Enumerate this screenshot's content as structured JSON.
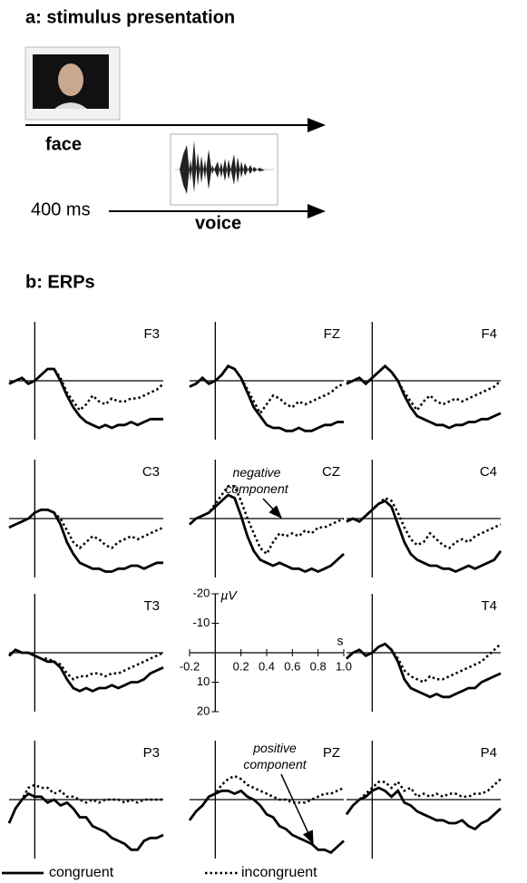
{
  "section_a": {
    "title": "a: stimulus presentation",
    "face_label": "face",
    "delay_label": "400 ms",
    "voice_label": "voice"
  },
  "chart_data": {
    "type": "line",
    "title": "b: ERPs",
    "x": [
      -0.2,
      -0.15,
      -0.1,
      -0.05,
      0,
      0.05,
      0.1,
      0.15,
      0.2,
      0.25,
      0.3,
      0.35,
      0.4,
      0.45,
      0.5,
      0.55,
      0.6,
      0.65,
      0.7,
      0.75,
      0.8,
      0.85,
      0.9,
      0.95,
      1.0
    ],
    "xlim": [
      -0.2,
      1.0
    ],
    "ylim": [
      -20,
      20
    ],
    "invert_y": true,
    "xticks": [
      -0.2,
      0.2,
      0.4,
      0.6,
      0.8,
      {
        "value": 1.0,
        "label": "1.0"
      }
    ],
    "yticks": [
      -20,
      -10,
      10,
      20
    ],
    "xlabel": "s",
    "ylabel": "µV",
    "grid": false,
    "series": [
      {
        "name": "congruent",
        "color": "#000000",
        "style": "solid"
      },
      {
        "name": "incongruent",
        "color": "#000000",
        "style": "dotted"
      }
    ],
    "panels": [
      {
        "name": "F3",
        "values": [
          [
            1,
            0,
            -1,
            1,
            0,
            -2,
            -4,
            -4,
            0,
            5,
            9,
            12,
            14,
            15,
            16,
            15,
            16,
            15,
            15,
            14,
            15,
            14,
            13,
            13,
            13
          ],
          [
            1,
            0,
            -1,
            1,
            0,
            -2,
            -4,
            -4,
            -1,
            4,
            7,
            10,
            8,
            5,
            7,
            8,
            6,
            7,
            7,
            6,
            6,
            5,
            4,
            3,
            1
          ]
        ]
      },
      {
        "name": "FZ",
        "values": [
          [
            2,
            1,
            -1,
            1,
            0,
            -2,
            -5,
            -4,
            -1,
            4,
            9,
            12,
            15,
            16,
            16,
            17,
            17,
            16,
            17,
            17,
            16,
            15,
            15,
            14,
            14
          ],
          [
            2,
            1,
            -1,
            1,
            0,
            -2,
            -5,
            -4,
            -1,
            3,
            7,
            11,
            8,
            5,
            6,
            8,
            9,
            7,
            8,
            7,
            6,
            5,
            4,
            2,
            1
          ]
        ]
      },
      {
        "name": "F4",
        "values": [
          [
            1,
            0,
            -1,
            1,
            -1,
            -3,
            -5,
            -3,
            0,
            5,
            9,
            12,
            13,
            14,
            15,
            15,
            16,
            15,
            15,
            14,
            14,
            13,
            13,
            12,
            11
          ],
          [
            1,
            0,
            -1,
            1,
            -1,
            -3,
            -5,
            -3,
            0,
            4,
            7,
            10,
            7,
            5,
            7,
            8,
            7,
            6,
            7,
            6,
            5,
            4,
            3,
            2,
            0
          ]
        ]
      },
      {
        "name": "C3",
        "values": [
          [
            3,
            2,
            1,
            0,
            -2,
            -3,
            -3,
            -2,
            2,
            8,
            12,
            15,
            16,
            17,
            17,
            18,
            18,
            17,
            17,
            16,
            16,
            17,
            16,
            15,
            15
          ],
          [
            3,
            2,
            1,
            0,
            -2,
            -3,
            -3,
            -2,
            0,
            4,
            8,
            10,
            8,
            6,
            7,
            9,
            10,
            8,
            7,
            6,
            7,
            6,
            5,
            4,
            3
          ]
        ]
      },
      {
        "name": "CZ",
        "values": [
          [
            2,
            0,
            -1,
            -2,
            -4,
            -6,
            -8,
            -7,
            -1,
            6,
            11,
            14,
            15,
            16,
            15,
            16,
            17,
            17,
            18,
            17,
            18,
            17,
            16,
            14,
            12
          ],
          [
            2,
            0,
            -1,
            -2,
            -5,
            -8,
            -11,
            -11,
            -6,
            0,
            5,
            10,
            12,
            8,
            5,
            6,
            5,
            6,
            4,
            5,
            3,
            3,
            2,
            1,
            0
          ]
        ]
      },
      {
        "name": "C4",
        "values": [
          [
            1,
            0,
            1,
            -1,
            -3,
            -5,
            -6,
            -4,
            2,
            8,
            12,
            14,
            15,
            16,
            16,
            17,
            17,
            18,
            17,
            16,
            17,
            16,
            15,
            14,
            11
          ],
          [
            1,
            0,
            1,
            -1,
            -3,
            -5,
            -7,
            -6,
            -2,
            3,
            7,
            9,
            8,
            5,
            7,
            9,
            10,
            8,
            7,
            8,
            6,
            5,
            4,
            3,
            2
          ]
        ]
      },
      {
        "name": "T3",
        "values": [
          [
            1,
            -1,
            0,
            0,
            1,
            2,
            3,
            3,
            5,
            9,
            12,
            13,
            12,
            13,
            12,
            12,
            11,
            12,
            11,
            10,
            10,
            9,
            7,
            6,
            5
          ],
          [
            1,
            -1,
            0,
            0,
            1,
            2,
            2,
            3,
            4,
            7,
            9,
            8,
            8,
            7,
            7,
            8,
            7,
            7,
            6,
            5,
            4,
            3,
            2,
            1,
            0
          ]
        ]
      },
      {
        "name": "T4",
        "values": [
          [
            2,
            0,
            -1,
            1,
            0,
            -2,
            -3,
            -1,
            3,
            9,
            12,
            13,
            14,
            15,
            14,
            15,
            15,
            14,
            13,
            12,
            12,
            10,
            9,
            8,
            7
          ],
          [
            2,
            0,
            -1,
            1,
            0,
            -2,
            -3,
            -1,
            2,
            6,
            8,
            9,
            10,
            8,
            9,
            9,
            8,
            7,
            6,
            5,
            4,
            3,
            1,
            -1,
            -3
          ]
        ]
      },
      {
        "name": "P3",
        "values": [
          [
            8,
            3,
            0,
            -2,
            -1,
            -1,
            1,
            0,
            2,
            1,
            3,
            6,
            6,
            9,
            10,
            11,
            13,
            14,
            15,
            17,
            17,
            14,
            13,
            13,
            12
          ],
          [
            8,
            3,
            0,
            -4,
            -5,
            -4,
            -4,
            -2,
            -3,
            -1,
            -1,
            0,
            1,
            0,
            1,
            0,
            0,
            0,
            1,
            0,
            1,
            0,
            0,
            0,
            0
          ]
        ]
      },
      {
        "name": "PZ",
        "values": [
          [
            7,
            4,
            2,
            -1,
            -2,
            -3,
            -3,
            -2,
            -3,
            -1,
            0,
            2,
            5,
            6,
            9,
            10,
            12,
            13,
            14,
            15,
            17,
            17,
            18,
            16,
            14
          ],
          [
            7,
            4,
            2,
            -1,
            -2,
            -5,
            -7,
            -8,
            -7,
            -5,
            -4,
            -3,
            -2,
            -1,
            0,
            0,
            1,
            1,
            1,
            0,
            -1,
            -2,
            -2,
            -3,
            -4
          ]
        ]
      },
      {
        "name": "P4",
        "values": [
          [
            5,
            2,
            0,
            -1,
            -3,
            -4,
            -3,
            -1,
            -3,
            1,
            2,
            4,
            5,
            6,
            7,
            7,
            8,
            8,
            7,
            9,
            10,
            8,
            7,
            5,
            3
          ],
          [
            5,
            2,
            0,
            -2,
            -4,
            -6,
            -6,
            -4,
            -6,
            -3,
            -4,
            -1,
            -2,
            -1,
            -2,
            -1,
            -2,
            -2,
            -1,
            -1,
            -2,
            -2,
            -3,
            -5,
            -7
          ]
        ]
      }
    ],
    "annotations": [
      {
        "text": "negative component"
      },
      {
        "text": "positive component"
      }
    ]
  }
}
